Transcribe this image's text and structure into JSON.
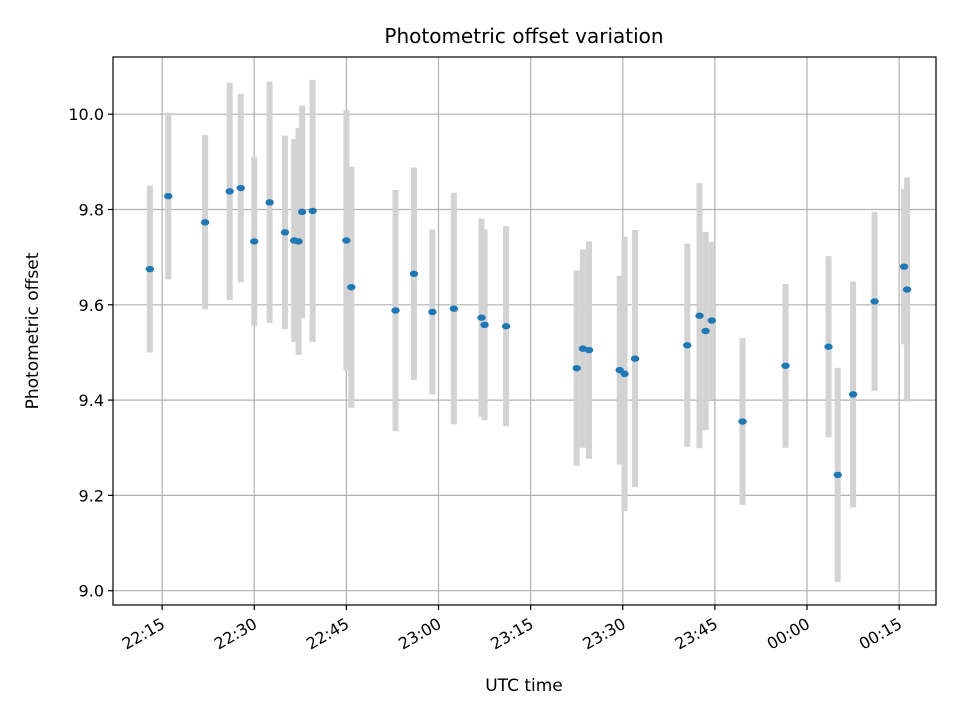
{
  "chart_data": {
    "type": "scatter",
    "title": "Photometric offset variation",
    "xlabel": "UTC time",
    "ylabel": "Photometric offset",
    "x_axis_kind": "time",
    "xlim": [
      "22:07",
      "00:21"
    ],
    "ylim": [
      8.97,
      10.12
    ],
    "x_ticks": [
      {
        "time": "22:15",
        "label": "22:15"
      },
      {
        "time": "22:30",
        "label": "22:30"
      },
      {
        "time": "22:45",
        "label": "22:45"
      },
      {
        "time": "23:00",
        "label": "23:00"
      },
      {
        "time": "23:15",
        "label": "23:15"
      },
      {
        "time": "23:30",
        "label": "23:30"
      },
      {
        "time": "23:45",
        "label": "23:45"
      },
      {
        "time": "00:00",
        "label": "00:00"
      },
      {
        "time": "00:15",
        "label": "00:15"
      }
    ],
    "y_ticks": [
      {
        "value": 9.0,
        "label": "9.0"
      },
      {
        "value": 9.2,
        "label": "9.2"
      },
      {
        "value": 9.4,
        "label": "9.4"
      },
      {
        "value": 9.6,
        "label": "9.6"
      },
      {
        "value": 9.8,
        "label": "9.8"
      },
      {
        "value": 10.0,
        "label": "10.0"
      }
    ],
    "grid": true,
    "marker_color": "#1f77b4",
    "errorbar_color": "#d3d3d3",
    "points": [
      {
        "time": "22:13",
        "y": 9.675,
        "yerr": 0.175
      },
      {
        "time": "22:16",
        "y": 9.828,
        "yerr": 0.175
      },
      {
        "time": "22:22",
        "y": 9.773,
        "yerr": 0.183
      },
      {
        "time": "22:26",
        "y": 9.838,
        "yerr": 0.228
      },
      {
        "time": "22:27.8",
        "y": 9.845,
        "yerr": 0.198
      },
      {
        "time": "22:30",
        "y": 9.733,
        "yerr": 0.178
      },
      {
        "time": "22:32.5",
        "y": 9.815,
        "yerr": 0.253
      },
      {
        "time": "22:35",
        "y": 9.752,
        "yerr": 0.203
      },
      {
        "time": "22:36.5",
        "y": 9.735,
        "yerr": 0.213
      },
      {
        "time": "22:37.2",
        "y": 9.733,
        "yerr": 0.238
      },
      {
        "time": "22:37.8",
        "y": 9.795,
        "yerr": 0.223
      },
      {
        "time": "22:39.5",
        "y": 9.797,
        "yerr": 0.275
      },
      {
        "time": "22:45",
        "y": 9.735,
        "yerr": 0.273
      },
      {
        "time": "22:45.8",
        "y": 9.637,
        "yerr": 0.253
      },
      {
        "time": "22:53",
        "y": 9.588,
        "yerr": 0.253
      },
      {
        "time": "22:56",
        "y": 9.665,
        "yerr": 0.223
      },
      {
        "time": "22:59",
        "y": 9.585,
        "yerr": 0.173
      },
      {
        "time": "23:02.5",
        "y": 9.592,
        "yerr": 0.243
      },
      {
        "time": "23:07",
        "y": 9.573,
        "yerr": 0.208
      },
      {
        "time": "23:07.5",
        "y": 9.558,
        "yerr": 0.2
      },
      {
        "time": "23:11",
        "y": 9.555,
        "yerr": 0.21
      },
      {
        "time": "23:22.5",
        "y": 9.467,
        "yerr": 0.205
      },
      {
        "time": "23:23.5",
        "y": 9.508,
        "yerr": 0.208
      },
      {
        "time": "23:24.5",
        "y": 9.505,
        "yerr": 0.228
      },
      {
        "time": "23:29.5",
        "y": 9.463,
        "yerr": 0.198
      },
      {
        "time": "23:30.3",
        "y": 9.455,
        "yerr": 0.288
      },
      {
        "time": "23:32",
        "y": 9.487,
        "yerr": 0.27
      },
      {
        "time": "23:40.5",
        "y": 9.515,
        "yerr": 0.213
      },
      {
        "time": "23:42.5",
        "y": 9.577,
        "yerr": 0.278
      },
      {
        "time": "23:43.5",
        "y": 9.545,
        "yerr": 0.208
      },
      {
        "time": "23:44.5",
        "y": 9.567,
        "yerr": 0.165
      },
      {
        "time": "23:49.5",
        "y": 9.355,
        "yerr": 0.175
      },
      {
        "time": "23:56.5",
        "y": 9.472,
        "yerr": 0.172
      },
      {
        "time": "00:03.5",
        "y": 9.512,
        "yerr": 0.19
      },
      {
        "time": "00:05",
        "y": 9.243,
        "yerr": 0.225
      },
      {
        "time": "00:07.5",
        "y": 9.412,
        "yerr": 0.237
      },
      {
        "time": "00:11",
        "y": 9.607,
        "yerr": 0.188
      },
      {
        "time": "00:15.8",
        "y": 9.68,
        "yerr": 0.163
      },
      {
        "time": "00:16.3",
        "y": 9.632,
        "yerr": 0.235
      }
    ]
  }
}
